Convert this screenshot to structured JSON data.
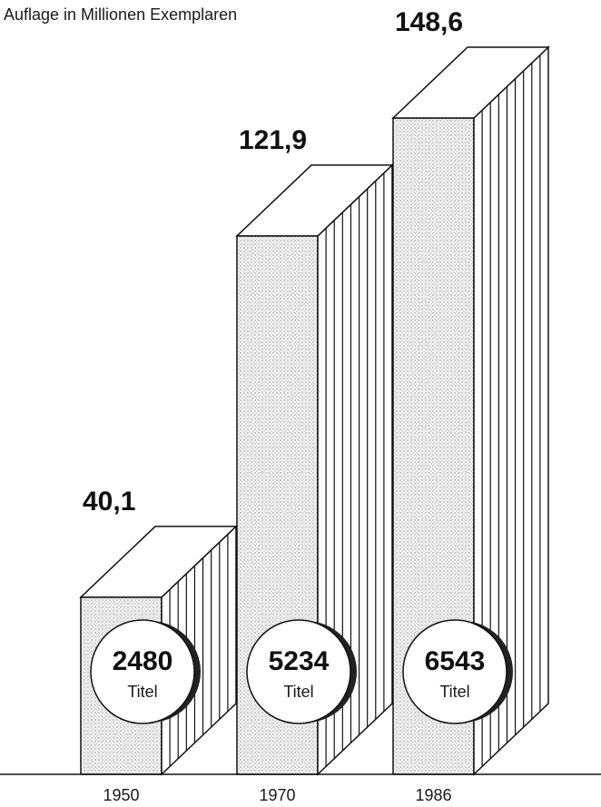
{
  "chart_data": {
    "type": "bar",
    "ylabel": "Auflage in Millionen Exemplaren",
    "categories": [
      "1950",
      "1970",
      "1986"
    ],
    "values": [
      40.1,
      121.9,
      148.6
    ],
    "value_labels": [
      "40,1",
      "121,9",
      "148,6"
    ],
    "titles": [
      {
        "count": "2480",
        "unit": "Titel"
      },
      {
        "count": "5234",
        "unit": "Titel"
      },
      {
        "count": "6543",
        "unit": "Titel"
      }
    ],
    "ylim": [
      0,
      148.6
    ]
  }
}
